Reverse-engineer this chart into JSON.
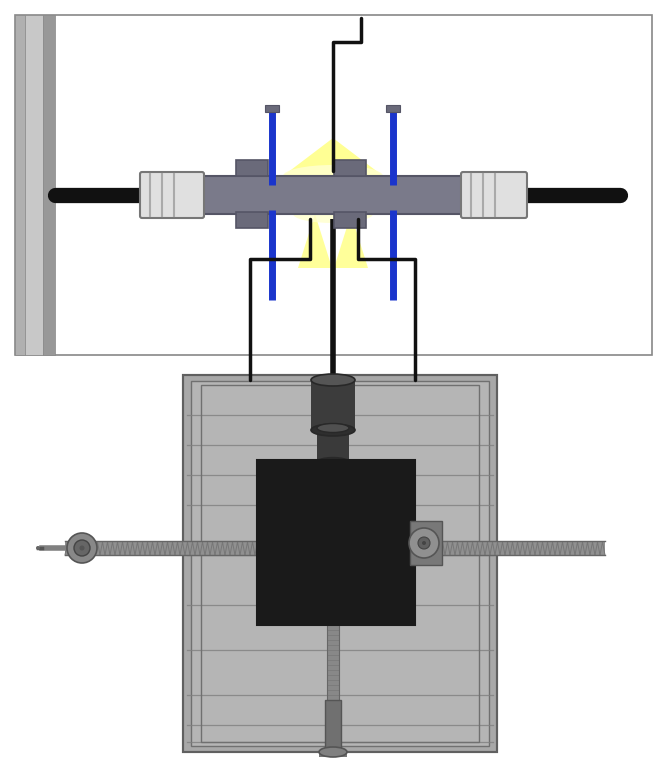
{
  "bg_color": "#ffffff",
  "fig_width": 6.67,
  "fig_height": 7.58,
  "dpi": 100,
  "black": "#111111",
  "blue": "#1a35cc",
  "yellow_light": "#ffffaa",
  "yellow": "#ffff44",
  "white": "#ffffff",
  "gray_bar": "#7a7a8a",
  "gray_body": "#999999",
  "gray_light": "#b8b8b8",
  "gray_dark": "#555555",
  "gray_darker": "#3a3a3a",
  "gray_block": "#222222",
  "silver": "#cccccc",
  "silver_dark": "#aaaaaa"
}
